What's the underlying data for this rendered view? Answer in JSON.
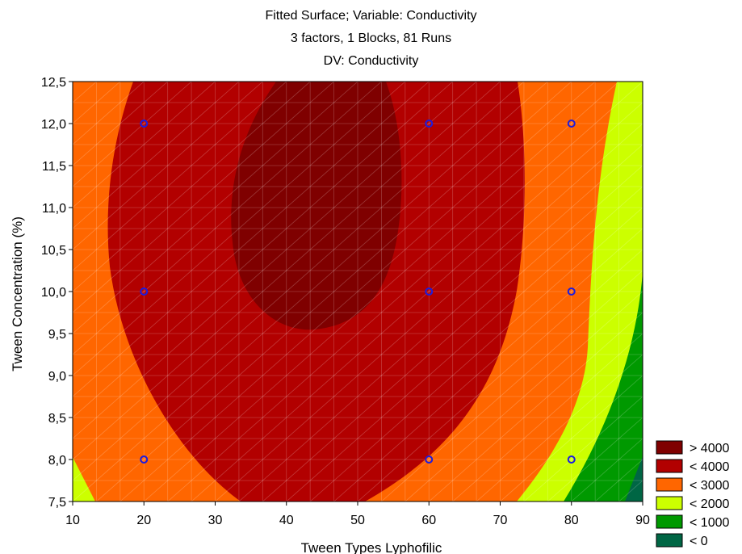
{
  "chart_data": {
    "type": "contour",
    "title": [
      "Fitted Surface; Variable: Conductivity",
      "3 factors, 1 Blocks, 81 Runs",
      "DV: Conductivity"
    ],
    "xlabel": "Tween Types Lyphofilic",
    "ylabel": "Tween Concentration (%)",
    "xlim": [
      10,
      90
    ],
    "ylim": [
      7.5,
      12.5
    ],
    "xticks": [
      "10",
      "20",
      "30",
      "40",
      "50",
      "60",
      "70",
      "80",
      "90"
    ],
    "yticks": [
      "7,5",
      "8,0",
      "8,5",
      "9,0",
      "9,5",
      "10,0",
      "10,5",
      "11,0",
      "11,5",
      "12,0",
      "12,5"
    ],
    "grid": true,
    "legend_position": "bottom-right",
    "levels": [
      {
        "label": "> 4000",
        "color": "#7f0000"
      },
      {
        "label": "< 4000",
        "color": "#b20000"
      },
      {
        "label": "< 3000",
        "color": "#ff6600"
      },
      {
        "label": "< 2000",
        "color": "#ccff00"
      },
      {
        "label": "< 1000",
        "color": "#009900"
      },
      {
        "label": "< 0",
        "color": "#006644"
      }
    ],
    "design_points": [
      {
        "x": 20,
        "y": 12.0
      },
      {
        "x": 60,
        "y": 12.0
      },
      {
        "x": 80,
        "y": 12.0
      },
      {
        "x": 20,
        "y": 10.0
      },
      {
        "x": 60,
        "y": 10.0
      },
      {
        "x": 80,
        "y": 10.0
      },
      {
        "x": 20,
        "y": 8.0
      },
      {
        "x": 60,
        "y": 8.0
      },
      {
        "x": 80,
        "y": 8.0
      }
    ]
  }
}
